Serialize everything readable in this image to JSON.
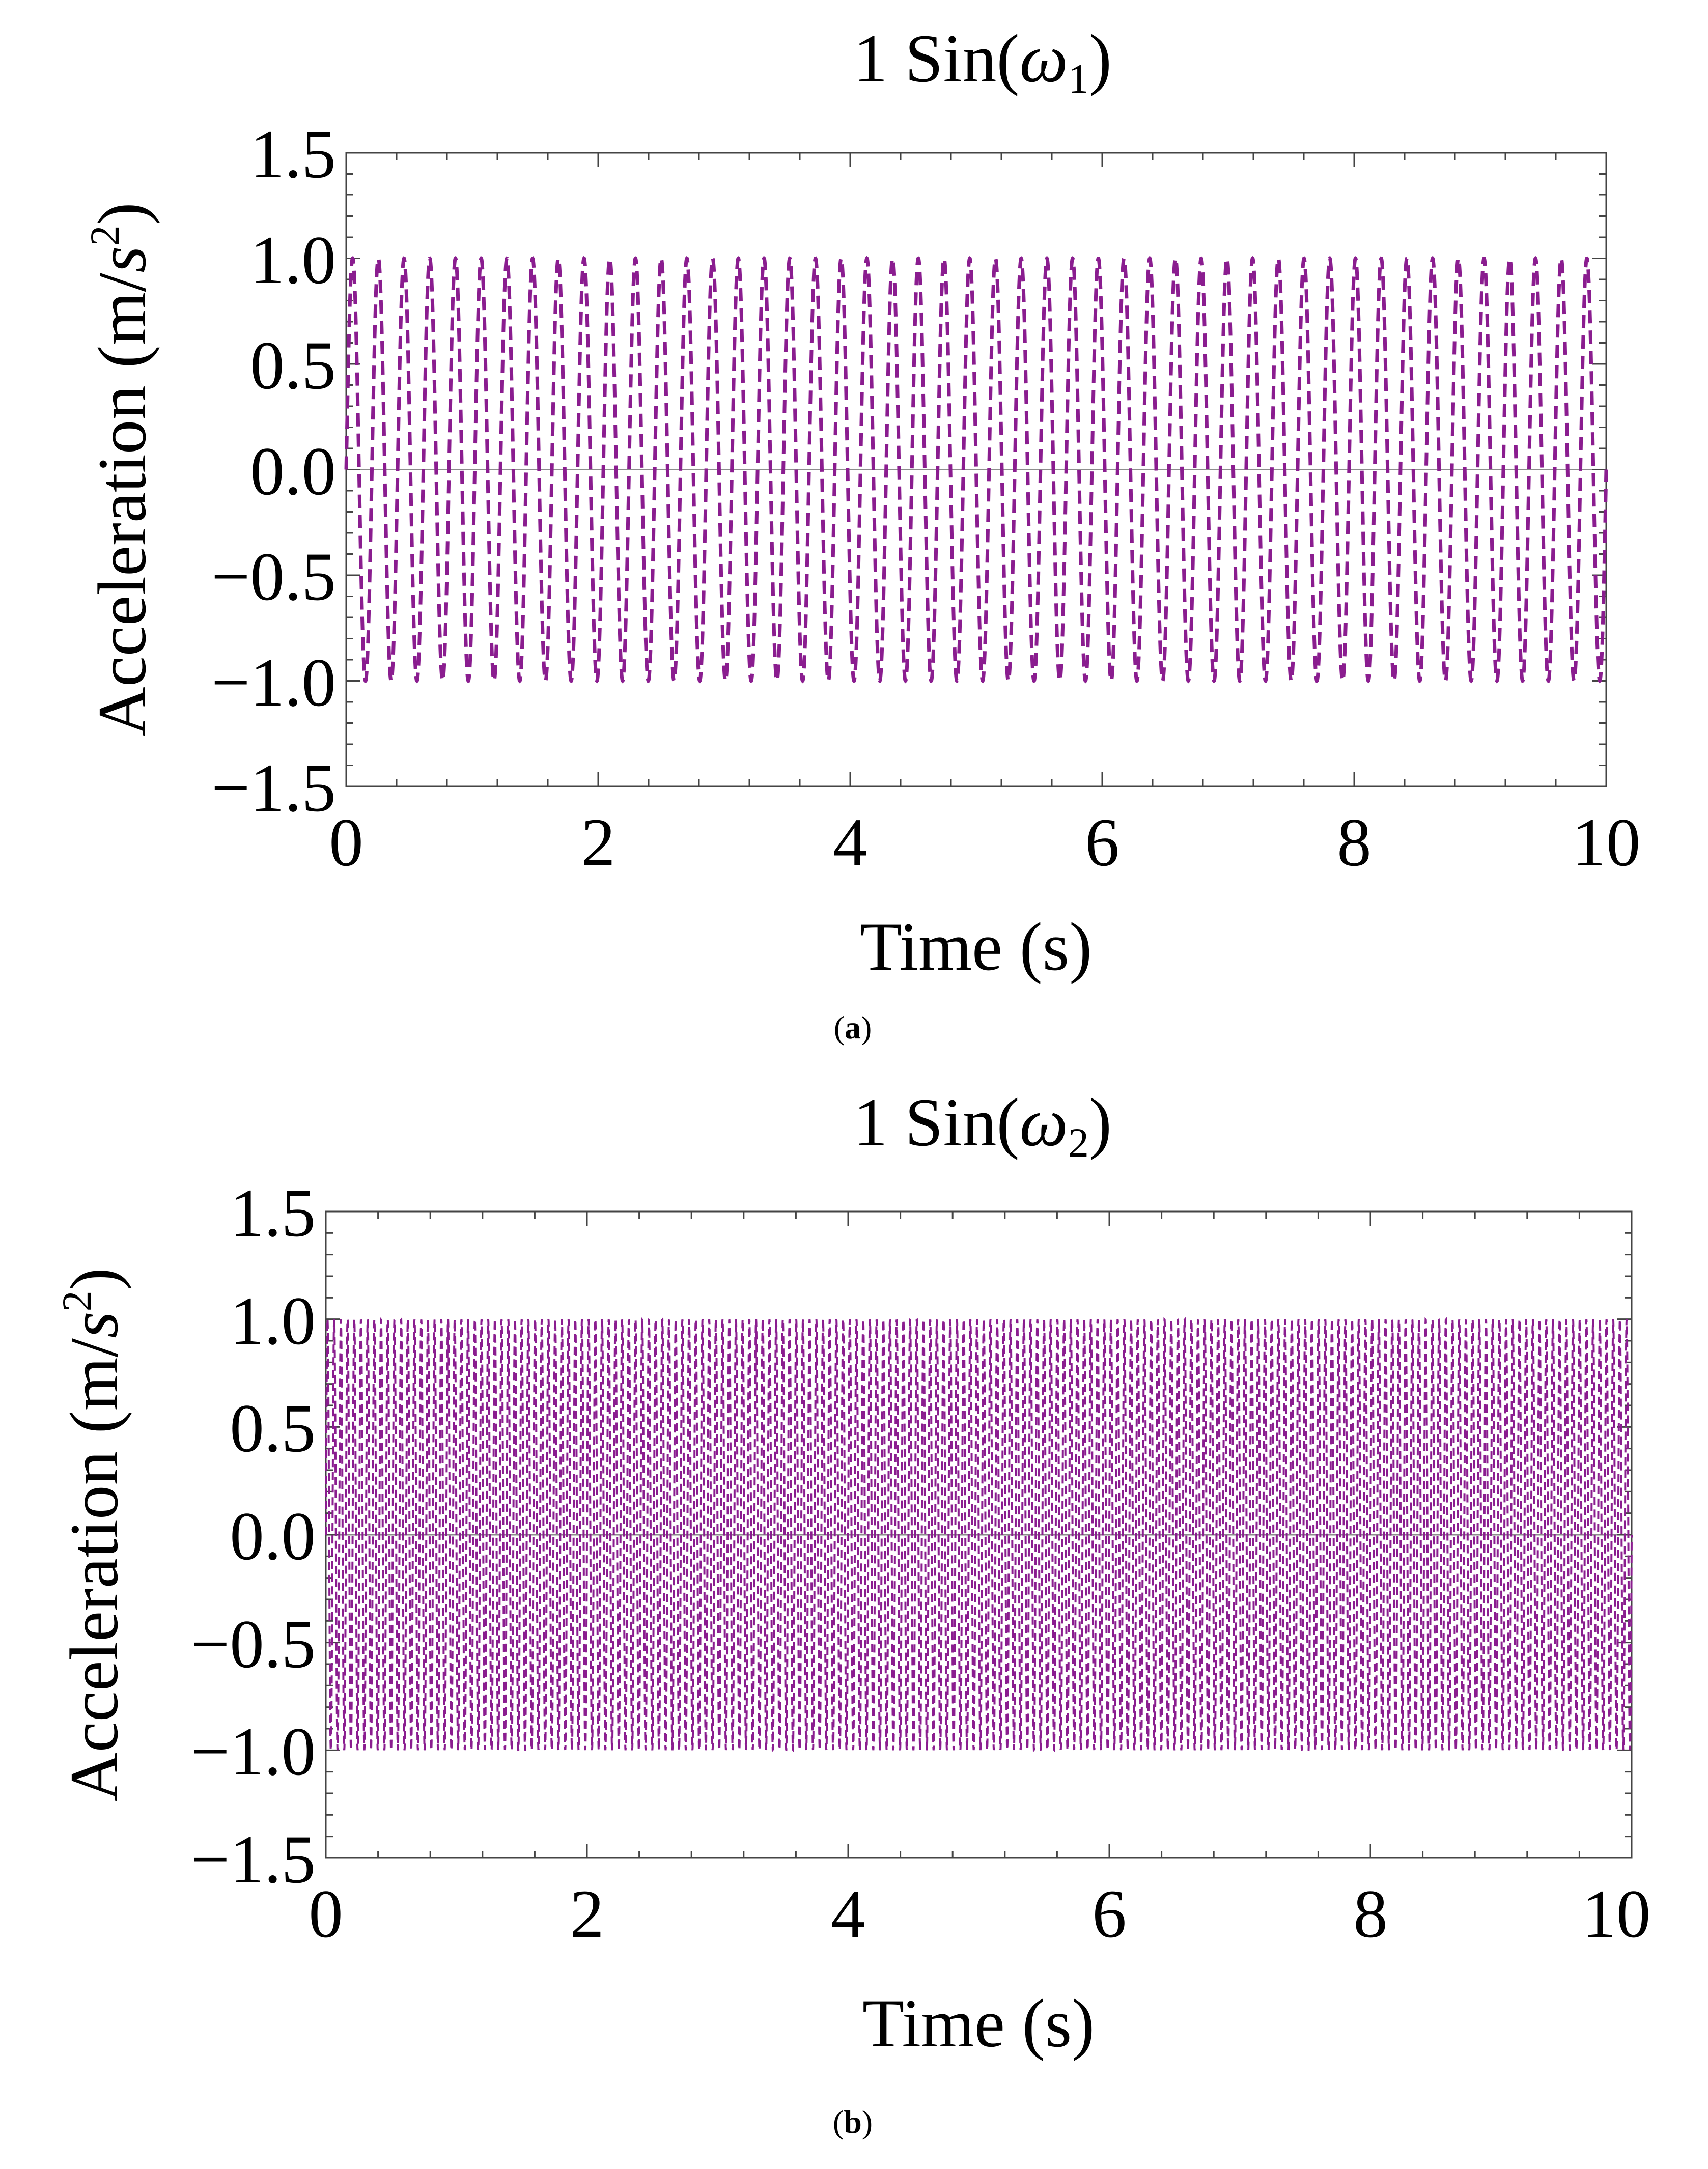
{
  "colors": {
    "series": "#8a1d8f",
    "frame": "#444444",
    "zero_line": "#8c8c8c"
  },
  "panels": [
    {
      "caption": "a",
      "title_main": "1 Sin(",
      "title_sym": "ω",
      "title_sub": "1",
      "title_close": ")",
      "xlabel": "Time (s)",
      "ylabel_main": "Acceleration (m/",
      "ylabel_s": "s",
      "ylabel_exp": "2",
      "ylabel_close": ")",
      "xticks": [
        "0",
        "2",
        "4",
        "6",
        "8",
        "10"
      ],
      "yticks": [
        "1.5",
        "1.0",
        "0.5",
        "0.0",
        "−0.5",
        "−1.0",
        "−1.5"
      ]
    },
    {
      "caption": "b",
      "title_main": "1 Sin(",
      "title_sym": "ω",
      "title_sub": "2",
      "title_close": ")",
      "xlabel": "Time (s)",
      "ylabel_main": "Acceleration (m/",
      "ylabel_s": "s",
      "ylabel_exp": "2",
      "ylabel_close": ")",
      "xticks": [
        "0",
        "2",
        "4",
        "6",
        "8",
        "10"
      ],
      "yticks": [
        "1.5",
        "1.0",
        "0.5",
        "0.0",
        "−0.5",
        "−1.0",
        "−1.5"
      ]
    }
  ],
  "chart_data": [
    {
      "type": "line",
      "title": "1 Sin(ω1)",
      "xlabel": "Time (s)",
      "ylabel": "Acceleration (m/s2)",
      "xlim": [
        0,
        10
      ],
      "ylim": [
        -1.5,
        1.5
      ],
      "grid": false,
      "line_style": "dashed",
      "series": [
        {
          "function": "1 Sin(ω1 t)",
          "amplitude": 1.0,
          "frequency_hz": 4.9,
          "x_range": [
            0,
            10
          ]
        }
      ]
    },
    {
      "type": "line",
      "title": "1 Sin(ω2)",
      "xlabel": "Time (s)",
      "ylabel": "Acceleration (m/s2)",
      "xlim": [
        0,
        10
      ],
      "ylim": [
        -1.5,
        1.5
      ],
      "grid": false,
      "line_style": "dashed",
      "series": [
        {
          "function": "1 Sin(ω2 t)",
          "amplitude": 1.0,
          "frequency_hz": 19.5,
          "x_range": [
            0,
            10
          ]
        }
      ]
    }
  ]
}
